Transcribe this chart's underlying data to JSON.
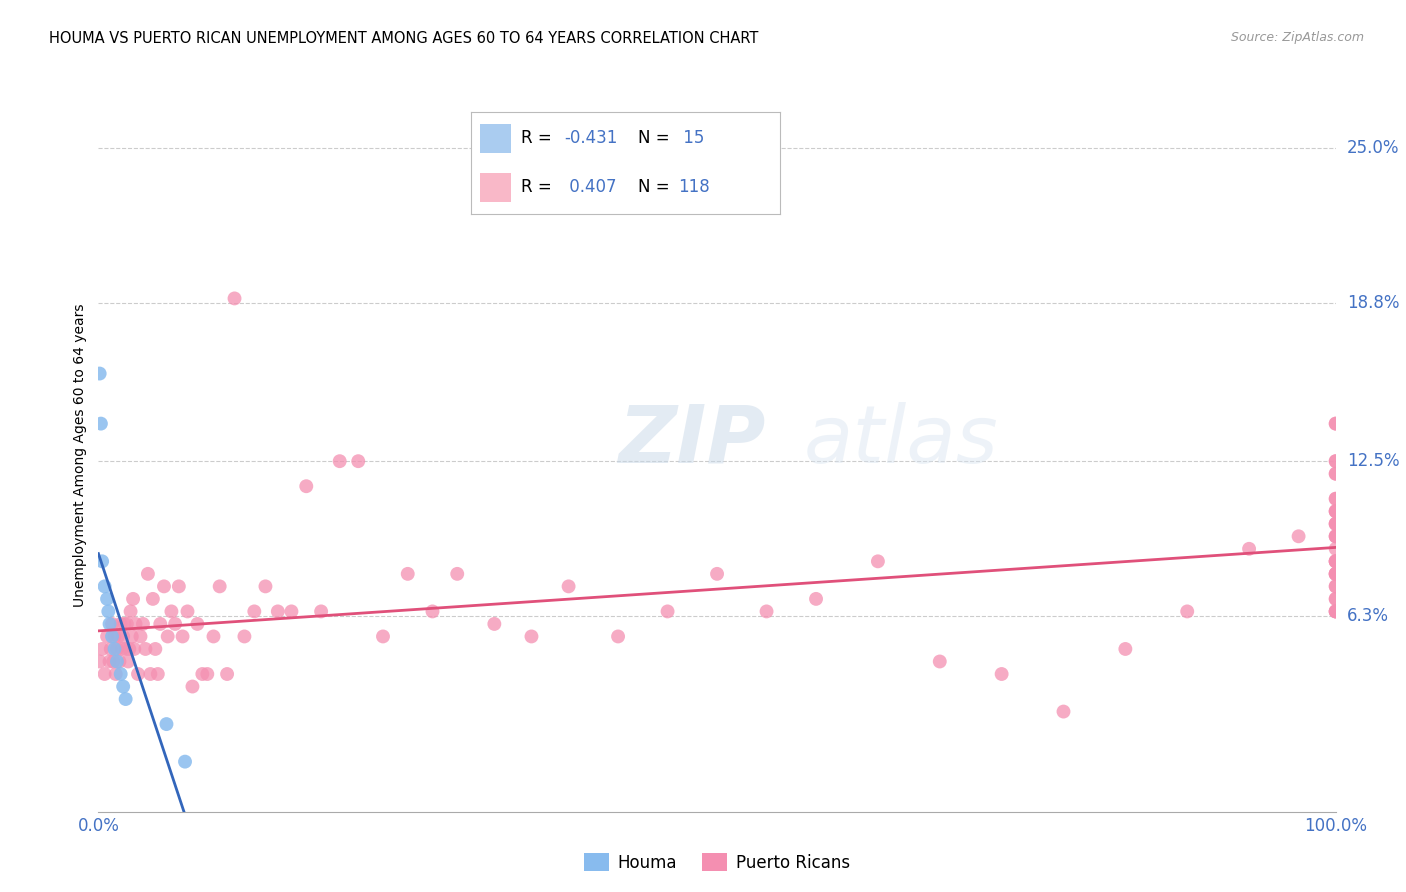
{
  "title": "HOUMA VS PUERTO RICAN UNEMPLOYMENT AMONG AGES 60 TO 64 YEARS CORRELATION CHART",
  "source": "Source: ZipAtlas.com",
  "ylabel": "Unemployment Among Ages 60 to 64 years",
  "xlim": [
    0,
    1.0
  ],
  "ylim": [
    -0.015,
    0.27
  ],
  "ytick_labels": [
    "6.3%",
    "12.5%",
    "18.8%",
    "25.0%"
  ],
  "ytick_positions": [
    0.063,
    0.125,
    0.188,
    0.25
  ],
  "houma_color": "#88bbee",
  "puerto_rican_color": "#f48fb1",
  "houma_line_color": "#3366bb",
  "puerto_rican_line_color": "#e0507a",
  "tick_label_color": "#4472c4",
  "houma_x": [
    0.001,
    0.002,
    0.003,
    0.005,
    0.007,
    0.008,
    0.009,
    0.011,
    0.013,
    0.015,
    0.018,
    0.02,
    0.022,
    0.055,
    0.07
  ],
  "houma_y": [
    0.16,
    0.14,
    0.085,
    0.075,
    0.07,
    0.065,
    0.06,
    0.055,
    0.05,
    0.045,
    0.04,
    0.035,
    0.03,
    0.02,
    0.005
  ],
  "pr_x": [
    0.001,
    0.003,
    0.005,
    0.007,
    0.009,
    0.01,
    0.011,
    0.012,
    0.013,
    0.014,
    0.015,
    0.016,
    0.017,
    0.018,
    0.019,
    0.02,
    0.021,
    0.022,
    0.023,
    0.024,
    0.025,
    0.026,
    0.027,
    0.028,
    0.029,
    0.03,
    0.032,
    0.034,
    0.036,
    0.038,
    0.04,
    0.042,
    0.044,
    0.046,
    0.048,
    0.05,
    0.053,
    0.056,
    0.059,
    0.062,
    0.065,
    0.068,
    0.072,
    0.076,
    0.08,
    0.084,
    0.088,
    0.093,
    0.098,
    0.104,
    0.11,
    0.118,
    0.126,
    0.135,
    0.145,
    0.156,
    0.168,
    0.18,
    0.195,
    0.21,
    0.23,
    0.25,
    0.27,
    0.29,
    0.32,
    0.35,
    0.38,
    0.42,
    0.46,
    0.5,
    0.54,
    0.58,
    0.63,
    0.68,
    0.73,
    0.78,
    0.83,
    0.88,
    0.93,
    0.97,
    1.0,
    1.0,
    1.0,
    1.0,
    1.0,
    1.0,
    1.0,
    1.0,
    1.0,
    1.0,
    1.0,
    1.0,
    1.0,
    1.0,
    1.0,
    1.0,
    1.0,
    1.0,
    1.0,
    1.0,
    1.0,
    1.0,
    1.0,
    1.0,
    1.0,
    1.0,
    1.0,
    1.0,
    1.0,
    1.0,
    1.0,
    1.0,
    1.0,
    1.0
  ],
  "pr_y": [
    0.045,
    0.05,
    0.04,
    0.055,
    0.045,
    0.05,
    0.06,
    0.045,
    0.055,
    0.04,
    0.05,
    0.055,
    0.045,
    0.06,
    0.05,
    0.055,
    0.06,
    0.05,
    0.06,
    0.045,
    0.05,
    0.065,
    0.055,
    0.07,
    0.05,
    0.06,
    0.04,
    0.055,
    0.06,
    0.05,
    0.08,
    0.04,
    0.07,
    0.05,
    0.04,
    0.06,
    0.075,
    0.055,
    0.065,
    0.06,
    0.075,
    0.055,
    0.065,
    0.035,
    0.06,
    0.04,
    0.04,
    0.055,
    0.075,
    0.04,
    0.19,
    0.055,
    0.065,
    0.075,
    0.065,
    0.065,
    0.115,
    0.065,
    0.125,
    0.125,
    0.055,
    0.08,
    0.065,
    0.08,
    0.06,
    0.055,
    0.075,
    0.055,
    0.065,
    0.08,
    0.065,
    0.07,
    0.085,
    0.045,
    0.04,
    0.025,
    0.05,
    0.065,
    0.09,
    0.095,
    0.08,
    0.085,
    0.1,
    0.14,
    0.065,
    0.12,
    0.11,
    0.11,
    0.095,
    0.105,
    0.085,
    0.105,
    0.12,
    0.065,
    0.125,
    0.1,
    0.07,
    0.125,
    0.14,
    0.095,
    0.08,
    0.085,
    0.1,
    0.075,
    0.07,
    0.08,
    0.095,
    0.08,
    0.085,
    0.065,
    0.09,
    0.105,
    0.075,
    0.065
  ]
}
